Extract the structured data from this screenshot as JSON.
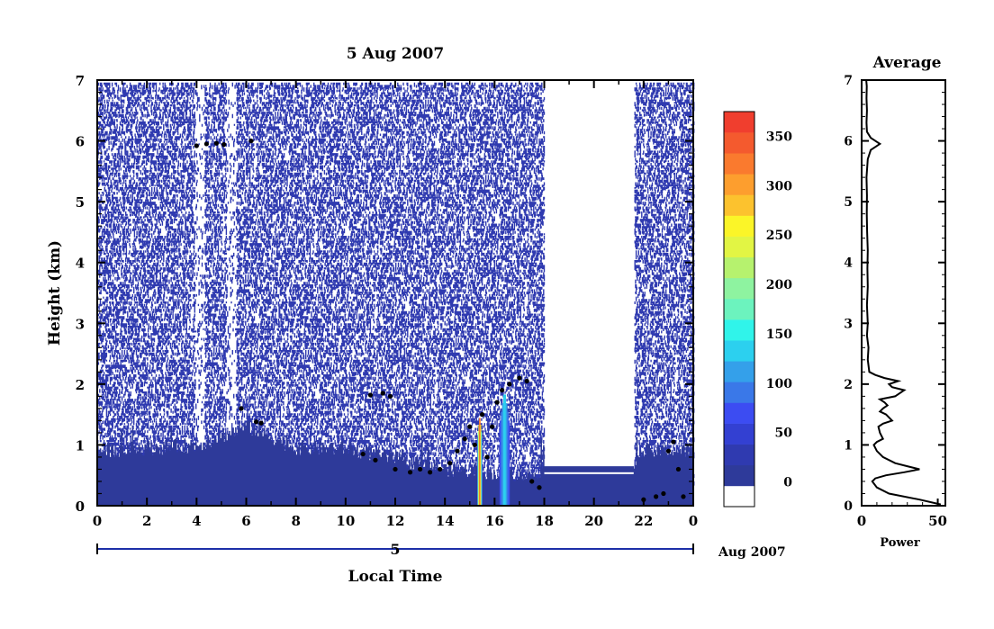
{
  "chart_data": [
    {
      "type": "heatmap",
      "title": "5 Aug 2007",
      "xlabel": "Local Time",
      "ylabel": "Height (km)",
      "xlim": [
        0,
        24
      ],
      "ylim": [
        0,
        7
      ],
      "x_ticks": [
        "0",
        "2",
        "4",
        "6",
        "8",
        "10",
        "12",
        "14",
        "16",
        "18",
        "20",
        "22",
        "0"
      ],
      "y_ticks": [
        "0",
        "1",
        "2",
        "3",
        "4",
        "5",
        "6",
        "7"
      ],
      "date_axis": {
        "day_label": "5",
        "month_label": "Aug 2007"
      },
      "data_gap_hours": [
        [
          18.0,
          21.6
        ]
      ],
      "colorbar": {
        "ticks": [
          "0",
          "50",
          "100",
          "150",
          "200",
          "250",
          "300",
          "350"
        ],
        "range": [
          -25,
          375
        ],
        "colors": [
          "#ffffff",
          "#2e3a9a",
          "#2f3ab0",
          "#3340d2",
          "#3c4cf2",
          "#3a78e8",
          "#34a0ea",
          "#2cd0ef",
          "#30f4ea",
          "#6cf3be",
          "#8ef3a0",
          "#b6f26e",
          "#e2f544",
          "#fbf528",
          "#fcc22e",
          "#fd9e2e",
          "#fa7a2e",
          "#f45a2e",
          "#f03e2e"
        ]
      },
      "background_layer": {
        "low_power_top_km": [
          [
            0,
            0.9
          ],
          [
            4,
            1.0
          ],
          [
            6,
            1.3
          ],
          [
            8,
            0.95
          ],
          [
            10,
            0.95
          ],
          [
            14,
            0.6
          ],
          [
            17.5,
            0.5
          ],
          [
            18,
            0.65
          ],
          [
            21.6,
            0.65
          ],
          [
            22,
            0.9
          ],
          [
            24,
            0.9
          ]
        ]
      },
      "strong_echoes": [
        {
          "time_range_h": [
            15.3,
            15.5
          ],
          "height_km": [
            0,
            1.5
          ],
          "peak_value": 370
        },
        {
          "time_range_h": [
            16.2,
            16.6
          ],
          "height_km": [
            0,
            1.9
          ],
          "peak_value": 150
        }
      ],
      "cloud_base_points": {
        "units": [
          "hour",
          "km"
        ],
        "points": [
          [
            4.0,
            5.92
          ],
          [
            4.4,
            5.95
          ],
          [
            4.8,
            5.96
          ],
          [
            5.1,
            5.94
          ],
          [
            6.2,
            6.0
          ],
          [
            5.8,
            1.6
          ],
          [
            6.4,
            1.38
          ],
          [
            6.6,
            1.36
          ],
          [
            11.0,
            1.82
          ],
          [
            11.5,
            1.85
          ],
          [
            11.8,
            1.8
          ],
          [
            10.7,
            0.85
          ],
          [
            11.2,
            0.75
          ],
          [
            12.0,
            0.6
          ],
          [
            12.6,
            0.55
          ],
          [
            13.0,
            0.6
          ],
          [
            13.4,
            0.55
          ],
          [
            13.8,
            0.6
          ],
          [
            14.2,
            0.7
          ],
          [
            14.5,
            0.9
          ],
          [
            14.8,
            1.1
          ],
          [
            15.0,
            1.3
          ],
          [
            15.2,
            1.0
          ],
          [
            15.5,
            1.5
          ],
          [
            15.7,
            0.8
          ],
          [
            15.9,
            1.3
          ],
          [
            16.1,
            1.7
          ],
          [
            16.3,
            1.9
          ],
          [
            16.6,
            2.0
          ],
          [
            17.0,
            2.1
          ],
          [
            17.3,
            2.05
          ],
          [
            17.5,
            0.4
          ],
          [
            17.8,
            0.3
          ],
          [
            22.0,
            0.1
          ],
          [
            22.5,
            0.15
          ],
          [
            22.8,
            0.2
          ],
          [
            23.0,
            0.9
          ],
          [
            23.2,
            1.05
          ],
          [
            23.4,
            0.6
          ],
          [
            23.6,
            0.15
          ]
        ]
      }
    },
    {
      "type": "line",
      "title": "Average",
      "xlabel": "Power",
      "ylabel": "",
      "xlim": [
        0,
        55
      ],
      "ylim": [
        0,
        7
      ],
      "x_ticks": [
        "0",
        "50"
      ],
      "y_ticks": [
        "0",
        "1",
        "2",
        "3",
        "4",
        "5",
        "6",
        "7"
      ],
      "series": [
        {
          "x": [
            52,
            38,
            18,
            10,
            7,
            9,
            16,
            28,
            38,
            30,
            22,
            14,
            10,
            8,
            10,
            14,
            12,
            11,
            14,
            20,
            16,
            12,
            14,
            17,
            15,
            12,
            22,
            28,
            20,
            18,
            24,
            15,
            9,
            5,
            4,
            4.5,
            3.5,
            4,
            3.5,
            4,
            3.8,
            4,
            3.6,
            3.4,
            3.5,
            3.2,
            4,
            6,
            12,
            6,
            3.5,
            3.2,
            3.5,
            3.2,
            3.4,
            3
          ],
          "y": [
            0.02,
            0.1,
            0.2,
            0.3,
            0.4,
            0.45,
            0.5,
            0.55,
            0.6,
            0.65,
            0.7,
            0.8,
            0.9,
            1.0,
            1.05,
            1.1,
            1.2,
            1.3,
            1.35,
            1.4,
            1.5,
            1.55,
            1.6,
            1.65,
            1.7,
            1.75,
            1.8,
            1.9,
            1.95,
            2.0,
            2.05,
            2.1,
            2.15,
            2.2,
            2.4,
            2.6,
            2.8,
            3.0,
            3.3,
            3.6,
            3.9,
            4.2,
            4.5,
            4.8,
            5.1,
            5.4,
            5.7,
            5.85,
            5.95,
            6.05,
            6.15,
            6.3,
            6.5,
            6.7,
            6.9,
            7.0
          ]
        }
      ]
    }
  ]
}
